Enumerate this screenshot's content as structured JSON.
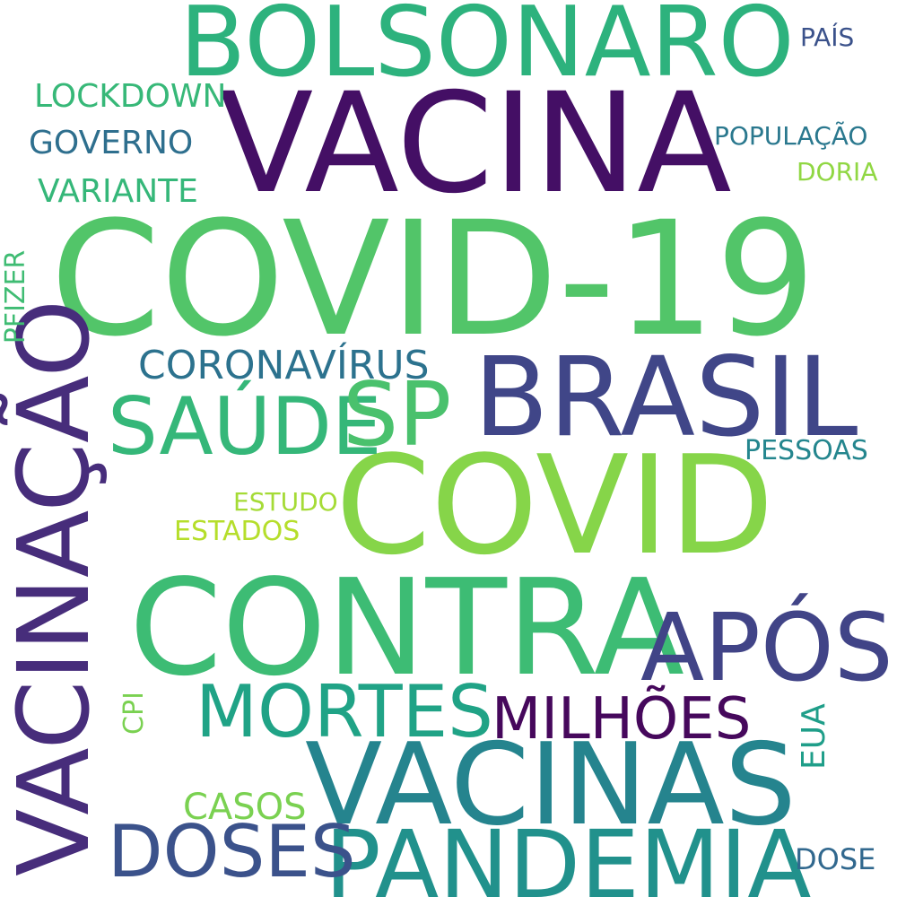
{
  "word_cloud": {
    "words": [
      {
        "id": "covid-19",
        "text": "COVID-19",
        "color": "#52c569"
      },
      {
        "id": "vacina",
        "text": "VACINA",
        "color": "#440f65"
      },
      {
        "id": "bolsonaro",
        "text": "BOLSONARO",
        "color": "#2db27d"
      },
      {
        "id": "brasil",
        "text": "BRASIL",
        "color": "#404688"
      },
      {
        "id": "covid",
        "text": "COVID",
        "color": "#86d549"
      },
      {
        "id": "contra",
        "text": "CONTRA",
        "color": "#3dbc74"
      },
      {
        "id": "vacinacao",
        "text": "VACINAÇÃO",
        "color": "#472d7b"
      },
      {
        "id": "vacinas",
        "text": "VACINAS",
        "color": "#25848e"
      },
      {
        "id": "pandemia",
        "text": "PANDEMIA",
        "color": "#21918c"
      },
      {
        "id": "apos",
        "text": "APÓS",
        "color": "#414487"
      },
      {
        "id": "saude",
        "text": "SAÚDE",
        "color": "#35b779"
      },
      {
        "id": "sp",
        "text": "SP",
        "color": "#4ac16d"
      },
      {
        "id": "mortes",
        "text": "MORTES",
        "color": "#20a386"
      },
      {
        "id": "doses",
        "text": "DOSES",
        "color": "#3b528b"
      },
      {
        "id": "milhoes",
        "text": "MILHÕES",
        "color": "#46085c"
      },
      {
        "id": "coronavirus",
        "text": "CORONAVÍRUS",
        "color": "#2c728e"
      },
      {
        "id": "lockdown",
        "text": "LOCKDOWN",
        "color": "#37b878"
      },
      {
        "id": "governo",
        "text": "GOVERNO",
        "color": "#2e6f8e"
      },
      {
        "id": "variante",
        "text": "VARIANTE",
        "color": "#35b779"
      },
      {
        "id": "pfizer",
        "text": "PFIZER",
        "color": "#3fbc73"
      },
      {
        "id": "populacao",
        "text": "POPULAÇÃO",
        "color": "#2a788e"
      },
      {
        "id": "doria",
        "text": "DORIA",
        "color": "#90d743"
      },
      {
        "id": "pais",
        "text": "PAÍS",
        "color": "#3b528b"
      },
      {
        "id": "pessoas",
        "text": "PESSOAS",
        "color": "#24868e"
      },
      {
        "id": "estudo",
        "text": "ESTUDO",
        "color": "#a5db36"
      },
      {
        "id": "estados",
        "text": "ESTADOS",
        "color": "#b5de2b"
      },
      {
        "id": "cpi",
        "text": "CPI",
        "color": "#7ad151"
      },
      {
        "id": "eua",
        "text": "EUA",
        "color": "#1f9e89"
      },
      {
        "id": "casos",
        "text": "CASOS",
        "color": "#7ad151"
      },
      {
        "id": "dose",
        "text": "DOSE",
        "color": "#31688e"
      }
    ]
  }
}
